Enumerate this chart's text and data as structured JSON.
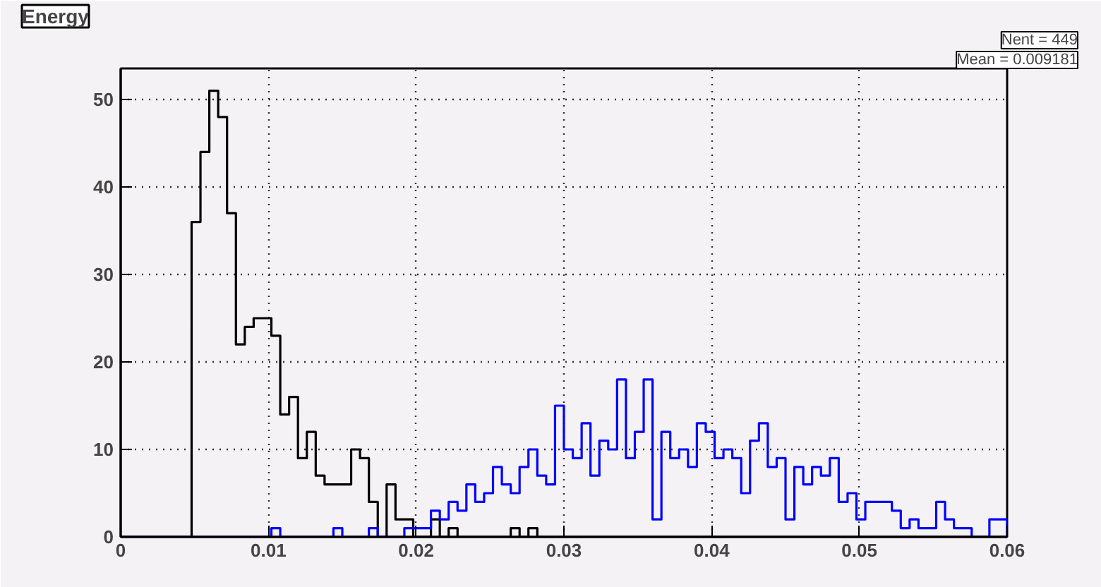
{
  "chart_data": {
    "type": "histogram",
    "title": "Energy",
    "bins": [
      0,
      0.0006,
      0.0012,
      0.0018,
      0.0024,
      0.003,
      0.0036,
      0.0042,
      0.0048,
      0.0054,
      0.006,
      0.0066,
      0.0072,
      0.0078,
      0.0084,
      0.009,
      0.0096,
      0.0102,
      0.0108,
      0.0114,
      0.012,
      0.0126,
      0.0132,
      0.0138,
      0.0144,
      0.015,
      0.0156,
      0.0162,
      0.0168,
      0.0174,
      0.018,
      0.0186,
      0.0192,
      0.0198,
      0.0204,
      0.021,
      0.0216,
      0.0222,
      0.0228,
      0.0234,
      0.024,
      0.0246,
      0.0252,
      0.0258,
      0.0264,
      0.027,
      0.0276,
      0.0282,
      0.0288,
      0.0294,
      0.03,
      0.0306,
      0.0312,
      0.0318,
      0.0324,
      0.033,
      0.0336,
      0.0342,
      0.0348,
      0.0354,
      0.036,
      0.0366,
      0.0372,
      0.0378,
      0.0384,
      0.039,
      0.0396,
      0.0402,
      0.0408,
      0.0414,
      0.042,
      0.0426,
      0.0432,
      0.0438,
      0.0444,
      0.045,
      0.0456,
      0.0462,
      0.0468,
      0.0474,
      0.048,
      0.0486,
      0.0492,
      0.0498,
      0.0504,
      0.051,
      0.0516,
      0.0522,
      0.0528,
      0.0534,
      0.054,
      0.0546,
      0.0552,
      0.0558,
      0.0564,
      0.057,
      0.0576,
      0.0582,
      0.0588,
      0.0594,
      0.06
    ],
    "series": [
      {
        "color": "#000000",
        "values": [
          0,
          0,
          0,
          0,
          0,
          0,
          0,
          0,
          36,
          44,
          51,
          48,
          37,
          22,
          24,
          25,
          25,
          23,
          14,
          16,
          9,
          12,
          7,
          6,
          6,
          6,
          10,
          9,
          4,
          0,
          6,
          2,
          2,
          0,
          0,
          2,
          0,
          1,
          0,
          0,
          0,
          0,
          0,
          0,
          1,
          0,
          1,
          0,
          0,
          0,
          0,
          0,
          0,
          0,
          0,
          0,
          0,
          0,
          0,
          0,
          0,
          0,
          0,
          0,
          0,
          0,
          0,
          0,
          0,
          0,
          0,
          0,
          0,
          0,
          0,
          0,
          0,
          0,
          0,
          0,
          0,
          0,
          0,
          0,
          0,
          0,
          0,
          0,
          0,
          0,
          0,
          0,
          0,
          0,
          0,
          0,
          0,
          0,
          0,
          0
        ]
      },
      {
        "color": "#0000ff",
        "values": [
          0,
          0,
          0,
          0,
          0,
          0,
          0,
          0,
          0,
          0,
          0,
          0,
          0,
          0,
          0,
          0,
          0,
          1,
          0,
          0,
          0,
          0,
          0,
          0,
          1,
          0,
          0,
          0,
          1,
          0,
          0,
          0,
          1,
          1,
          1,
          3,
          2,
          4,
          3,
          6,
          4,
          5,
          8,
          6,
          5,
          8,
          10,
          7,
          6,
          15,
          10,
          9,
          13,
          7,
          11,
          10,
          18,
          9,
          12,
          18,
          2,
          12,
          9,
          10,
          8,
          13,
          12,
          9,
          10,
          9,
          5,
          11,
          13,
          8,
          9,
          2,
          8,
          6,
          8,
          7,
          9,
          4,
          5,
          2,
          4,
          4,
          4,
          3,
          1,
          2,
          1,
          1,
          4,
          2,
          1,
          1,
          0,
          0,
          2,
          2
        ]
      }
    ],
    "xlim": [
      0,
      0.06
    ],
    "xticks": [
      0,
      0.01,
      0.02,
      0.03,
      0.04,
      0.05,
      0.06
    ],
    "ylim": [
      0,
      53.55
    ],
    "yticks": [
      0,
      10,
      20,
      30,
      40,
      50
    ],
    "grid": true,
    "annotations": [
      "Nent = 449",
      "Mean = 0.009181"
    ]
  }
}
